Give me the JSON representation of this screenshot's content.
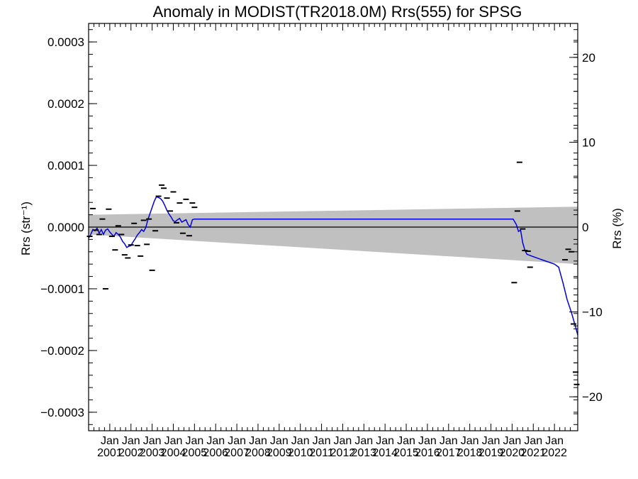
{
  "chart_data": {
    "type": "line",
    "title": "Anomaly in MODIST(TR2018.0M) Rrs(555) for SPSG",
    "ylabel": "Rrs (str⁻¹)",
    "y2label": "Rrs (%)",
    "ylim": [
      -0.00033,
      0.00033
    ],
    "y2lim": [
      -24,
      24
    ],
    "yticks": [
      -0.0003,
      -0.0002,
      -0.0001,
      0.0,
      0.0001,
      0.0002,
      0.0003
    ],
    "yticklabels": [
      "−0.0003",
      "−0.0002",
      "−0.0001",
      "0.0000",
      "0.0001",
      "0.0002",
      "0.0003"
    ],
    "y2ticks": [
      -20,
      -10,
      0,
      10,
      20
    ],
    "y2ticklabels": [
      "−20",
      "−10",
      "0",
      "10",
      "20"
    ],
    "xlim": [
      2000.0,
      2023.1
    ],
    "xtick_top": "Jan",
    "xticks": [
      2001,
      2002,
      2003,
      2004,
      2005,
      2006,
      2007,
      2008,
      2009,
      2010,
      2011,
      2012,
      2013,
      2014,
      2015,
      2016,
      2017,
      2018,
      2019,
      2020,
      2021,
      2022
    ],
    "xticklabels": [
      "2001",
      "2002",
      "2003",
      "2004",
      "2005",
      "2006",
      "2007",
      "2008",
      "2009",
      "2010",
      "2011",
      "2012",
      "2013",
      "2014",
      "2015",
      "2016",
      "2017",
      "2018",
      "2019",
      "2020",
      "2021",
      "2022"
    ],
    "band": {
      "x": [
        2000.0,
        2023.1
      ],
      "upper": [
        2e-05,
        3.3e-05
      ],
      "lower": [
        -1.2e-05,
        -6e-05
      ],
      "color": "#c0c0c0"
    },
    "zero_line": 0.0,
    "series": [
      {
        "style": "line",
        "color": "#0000dd",
        "x": [
          2000.0,
          2000.1,
          2000.2,
          2000.3,
          2000.4,
          2000.5,
          2000.6,
          2000.7,
          2000.8,
          2000.9,
          2001.0,
          2001.1,
          2001.2,
          2001.3,
          2001.4,
          2001.5,
          2001.6,
          2001.7,
          2001.8,
          2001.9,
          2002.0,
          2002.1,
          2002.2,
          2002.3,
          2002.4,
          2002.5,
          2002.6,
          2002.7,
          2002.8,
          2002.9,
          2003.0,
          2003.1,
          2003.2,
          2003.3,
          2003.4,
          2003.5,
          2003.6,
          2003.7,
          2003.8,
          2003.9,
          2004.0,
          2004.1,
          2004.2,
          2004.3,
          2004.4,
          2004.5,
          2004.6,
          2004.7,
          2004.8,
          2004.9,
          2005.0,
          2020.05,
          2020.2,
          2020.3,
          2020.4,
          2020.5,
          2020.6,
          2020.7,
          2021.0,
          2021.5,
          2022.0,
          2022.2,
          2022.4,
          2022.6,
          2022.8,
          2023.0,
          2023.1
        ],
        "y": [
          -1.8e-05,
          -1.2e-05,
          -4e-06,
          -6e-06,
          -2e-06,
          -1e-05,
          -4e-06,
          -1.2e-05,
          -5e-06,
          -3e-06,
          -8e-06,
          -1.2e-05,
          -1.5e-05,
          -9e-06,
          -1.2e-05,
          -1.6e-05,
          -2.3e-05,
          -2.7e-05,
          -3.3e-05,
          -3.1e-05,
          -3e-05,
          -2.4e-05,
          -1.9e-05,
          -1.3e-05,
          -9e-06,
          -4e-06,
          -7e-06,
          -1e-06,
          1.2e-05,
          2.2e-05,
          3.2e-05,
          4.2e-05,
          4.9e-05,
          4.8e-05,
          4.6e-05,
          4.2e-05,
          3.5e-05,
          2.7e-05,
          2.1e-05,
          1.6e-05,
          1e-05,
          9e-06,
          1.2e-05,
          1.4e-05,
          8e-06,
          1e-05,
          1.2e-05,
          4e-06,
          0.0,
          1.2e-05,
          1.3e-05,
          1.3e-05,
          4e-06,
          -7e-06,
          -5e-06,
          -2.5e-05,
          -3.7e-05,
          -4.4e-05,
          -4.8e-05,
          -5.4e-05,
          -6e-05,
          -6.5e-05,
          -9e-05,
          -0.000118,
          -0.000138,
          -0.000162,
          -0.000175
        ]
      },
      {
        "style": "dash",
        "color": "#000000",
        "x": [
          2000.05,
          2000.2,
          2000.35,
          2000.5,
          2000.65,
          2000.8,
          2000.95,
          2001.1,
          2001.25,
          2001.4,
          2001.55,
          2001.7,
          2001.85,
          2002.0,
          2002.15,
          2002.3,
          2002.45,
          2002.6,
          2002.75,
          2002.85,
          2003.0,
          2003.15,
          2003.3,
          2003.45,
          2003.55,
          2003.7,
          2003.85,
          2004.0,
          2004.15,
          2004.3,
          2004.45,
          2004.6,
          2004.75,
          2004.9,
          2005.0,
          2020.1,
          2020.25,
          2020.35,
          2020.5,
          2020.6,
          2020.75,
          2020.85,
          2022.5,
          2022.65,
          2022.8,
          2022.9,
          2023.0,
          2023.05
        ],
        "y": [
          -1.5e-05,
          3e-05,
          -5e-06,
          -1.2e-05,
          1.3e-05,
          -0.0001,
          2.9e-05,
          -1.5e-05,
          -3.7e-05,
          2e-06,
          -1.2e-05,
          -4.5e-05,
          -5e-05,
          -2.9e-05,
          6e-06,
          -3e-05,
          -4.7e-05,
          1.1e-05,
          -2.8e-05,
          1.3e-05,
          -7e-05,
          -6e-06,
          5e-05,
          6.8e-05,
          6.3e-05,
          4.7e-05,
          2.6e-05,
          5.7e-05,
          7e-06,
          3.9e-05,
          -1e-05,
          4.5e-05,
          -1.4e-05,
          3.9e-05,
          3.2e-05,
          -9e-05,
          2.6e-05,
          0.000105,
          -3e-06,
          -3.8e-05,
          -3.9e-05,
          -6.5e-05,
          -5.3e-05,
          -3.6e-05,
          -4e-05,
          -0.000157,
          -0.000235,
          -0.000255
        ]
      }
    ]
  }
}
